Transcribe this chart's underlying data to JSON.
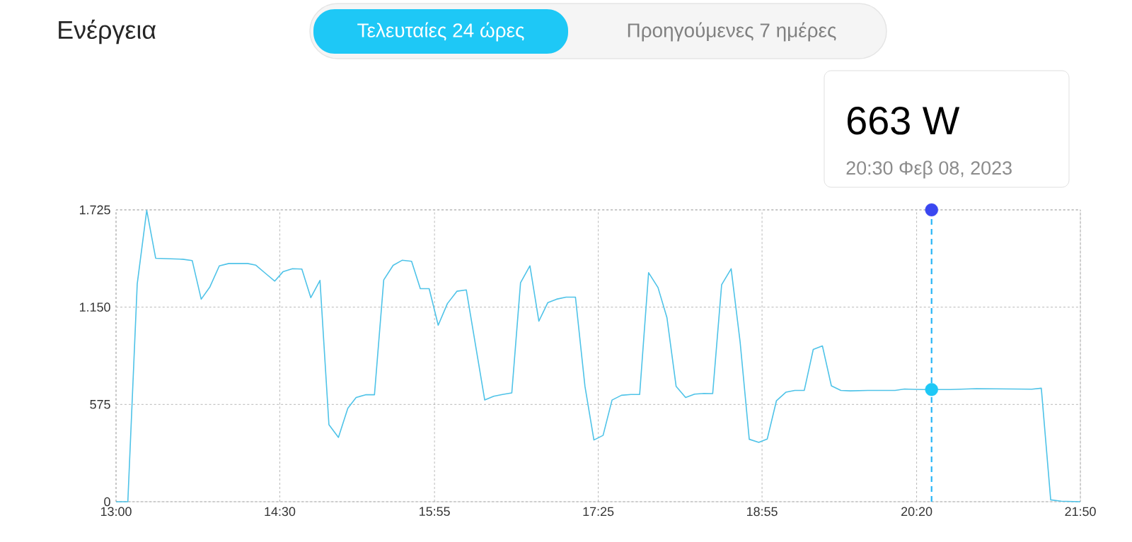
{
  "chart_data": {
    "type": "line",
    "title": "Ενέργεια",
    "grid": true,
    "series": [
      {
        "color": "#4fc3e8",
        "x": [
          13.0,
          13.108,
          13.194,
          13.281,
          13.363,
          13.611,
          13.698,
          13.78,
          13.86,
          13.946,
          14.033,
          14.205,
          14.281,
          14.368,
          14.454,
          14.529,
          14.616,
          14.702,
          14.784,
          14.868,
          14.95,
          15.037,
          15.123,
          15.199,
          15.285,
          15.367,
          15.452,
          15.538,
          15.62,
          15.707,
          15.787,
          15.868,
          15.951,
          16.035,
          16.122,
          16.208,
          16.377,
          16.459,
          16.539,
          16.625,
          16.705,
          16.791,
          16.873,
          16.955,
          17.035,
          17.122,
          17.208,
          17.295,
          17.377,
          17.461,
          17.543,
          17.629,
          17.716,
          17.796,
          17.878,
          17.964,
          18.046,
          18.13,
          18.217,
          18.299,
          18.385,
          18.465,
          18.547,
          18.634,
          18.716,
          18.8,
          18.887,
          18.965,
          19.049,
          19.135,
          19.217,
          19.304,
          19.386,
          19.47,
          19.552,
          19.639,
          19.725,
          19.887,
          20.135,
          20.222,
          20.308,
          20.39,
          20.47,
          20.643,
          20.881,
          21.226,
          21.388,
          21.475,
          21.561,
          21.658,
          21.831
        ],
        "values": [
          0,
          0,
          1287,
          1722,
          1439,
          1433,
          1425,
          1197,
          1270,
          1394,
          1408,
          1408,
          1398,
          1350,
          1304,
          1359,
          1377,
          1375,
          1206,
          1308,
          455,
          380,
          552,
          616,
          632,
          632,
          1311,
          1397,
          1427,
          1421,
          1259,
          1259,
          1043,
          1171,
          1244,
          1252,
          601,
          623,
          634,
          643,
          1294,
          1394,
          1067,
          1177,
          1197,
          1209,
          1209,
          682,
          365,
          392,
          601,
          629,
          634,
          634,
          1354,
          1266,
          1088,
          682,
          616,
          636,
          640,
          639,
          1283,
          1377,
          946,
          369,
          351,
          371,
          597,
          647,
          658,
          658,
          900,
          921,
          685,
          658,
          655,
          658,
          658,
          666,
          664,
          663,
          663,
          663,
          668,
          666,
          665,
          671,
          11,
          3,
          0
        ]
      },
      {
        "type": "scatter",
        "color": "#1ec8f6",
        "marker": "circle",
        "x": [
          20.47
        ],
        "values": [
          663
        ]
      },
      {
        "type": "scatter",
        "color": "#3a47f0",
        "marker": "circle",
        "x": [
          20.47
        ],
        "values": [
          1725
        ]
      }
    ],
    "xlim": [
      13.0,
      21.833
    ],
    "xticks": [
      {
        "value": 13.0,
        "label": "13:00"
      },
      {
        "value": 14.5,
        "label": "14:30"
      },
      {
        "value": 15.917,
        "label": "15:55"
      },
      {
        "value": 17.417,
        "label": "17:25"
      },
      {
        "value": 18.917,
        "label": "18:55"
      },
      {
        "value": 20.333,
        "label": "20:20"
      },
      {
        "value": 21.833,
        "label": "21:50"
      }
    ],
    "ylim": [
      0,
      1725
    ],
    "yticks": [
      0,
      575,
      {
        "value": 1150,
        "label": "1.150"
      },
      {
        "value": 1725,
        "label": "1.725"
      }
    ],
    "ref_lines": [
      {
        "axis": "x",
        "value": 20.47,
        "color": "#29b6f6",
        "line_style": "dashed"
      }
    ],
    "annotations": [
      "Τελευταίες 24 ώρες",
      "Προηγούμενες 7 ημέρες",
      "663 W",
      "20:30 Φεβ 08, 2023"
    ]
  }
}
